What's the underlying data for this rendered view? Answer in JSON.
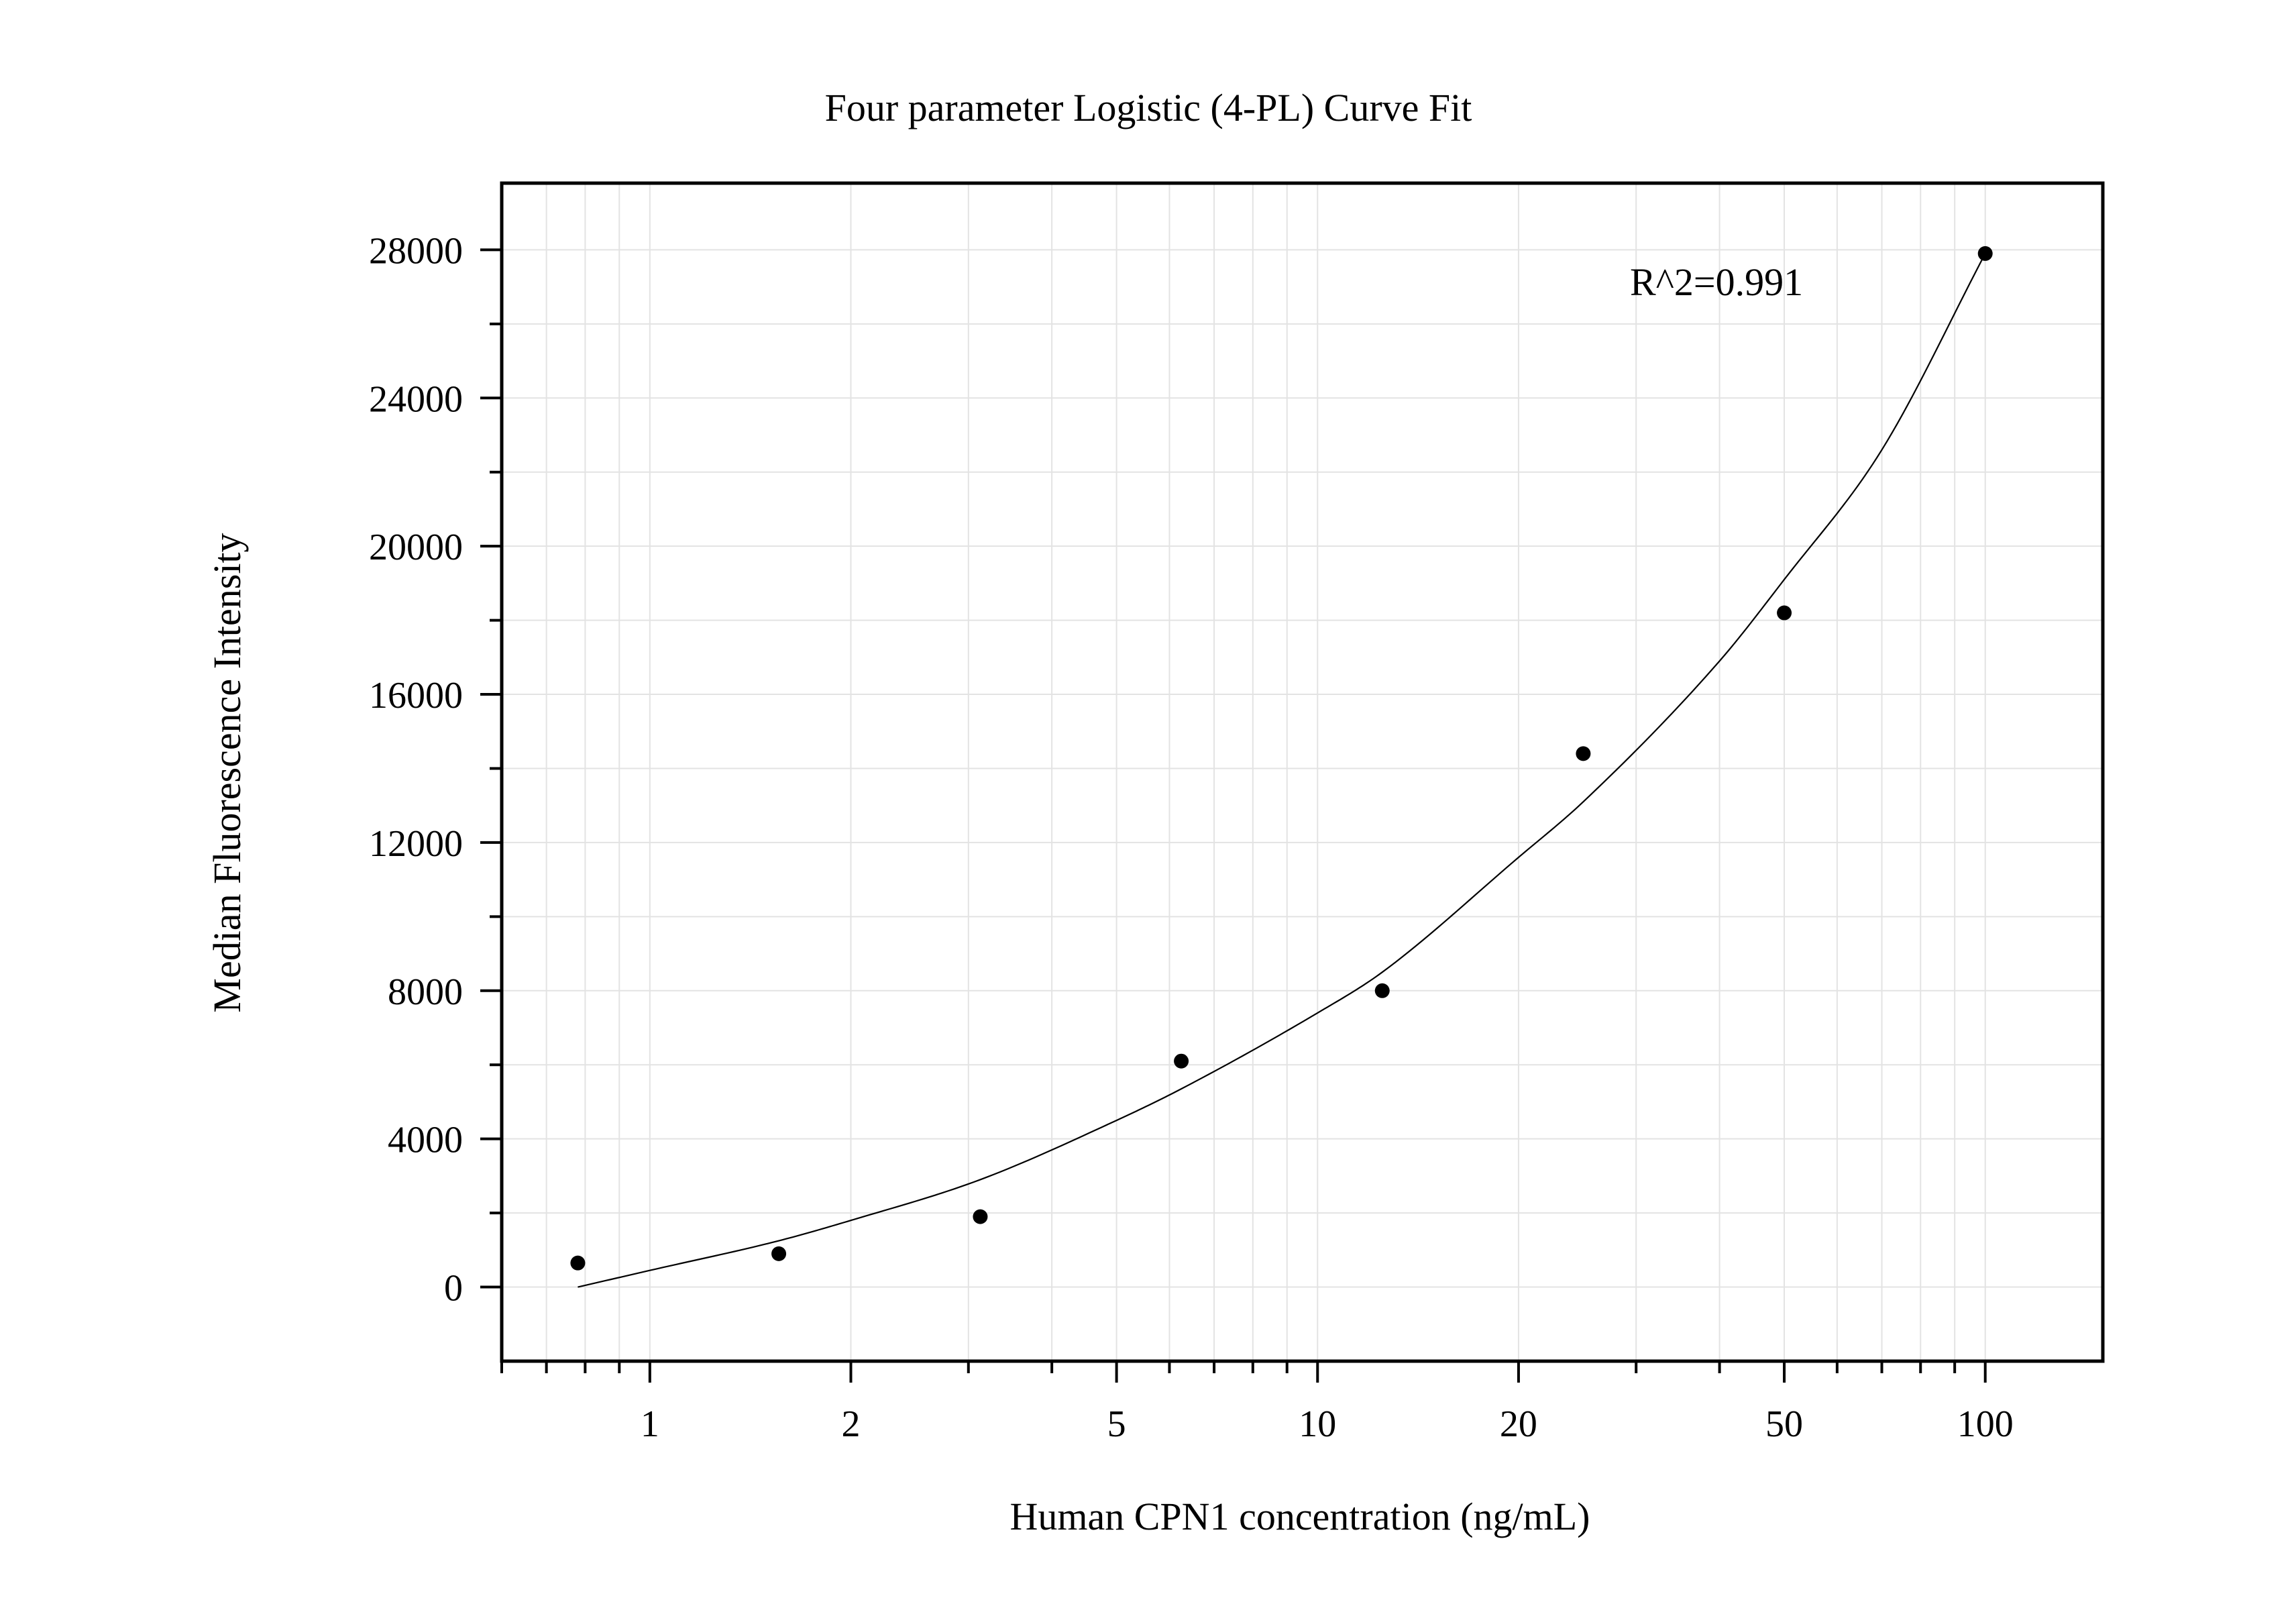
{
  "chart_data": {
    "type": "scatter",
    "title": "Four parameter Logistic (4-PL) Curve Fit",
    "xlabel": "Human CPN1 concentration (ng/mL)",
    "ylabel": "Median Fluorescence Intensity",
    "x_scale": "log",
    "xlim": [
      0.6,
      150
    ],
    "ylim": [
      -2000,
      29800
    ],
    "x_ticks": [
      1,
      2,
      5,
      10,
      20,
      50,
      100
    ],
    "x_tick_labels": [
      "1",
      "2",
      "5",
      "10",
      "20",
      "50",
      "100"
    ],
    "y_ticks": [
      0,
      4000,
      8000,
      12000,
      16000,
      20000,
      24000,
      28000
    ],
    "y_tick_labels": [
      "0",
      "4000",
      "8000",
      "12000",
      "16000",
      "20000",
      "24000",
      "28000"
    ],
    "grid": true,
    "annotation": "R^2=0.991",
    "points": {
      "x": [
        0.78,
        1.56,
        3.125,
        6.25,
        12.5,
        25,
        50,
        100
      ],
      "y": [
        650,
        900,
        1900,
        6100,
        8000,
        14400,
        18200,
        27900
      ]
    },
    "fit_curve": {
      "x": [
        0.78,
        1,
        1.56,
        2,
        3.125,
        5,
        6.25,
        10,
        12.5,
        20,
        25,
        40,
        50,
        70,
        100
      ],
      "y": [
        0,
        450,
        1250,
        1800,
        2900,
        4500,
        5350,
        7400,
        8500,
        11600,
        13100,
        16900,
        19100,
        22600,
        27900
      ]
    },
    "colors": {
      "points": "#000000",
      "curve": "#000000",
      "grid": "#e3e3e3"
    }
  }
}
